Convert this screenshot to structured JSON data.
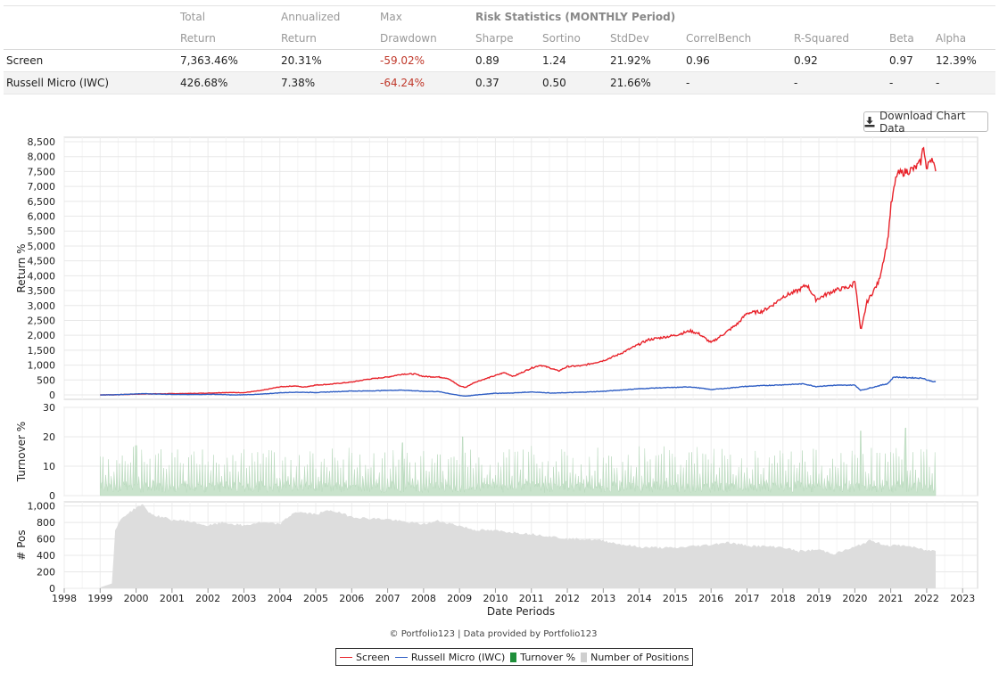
{
  "stats": {
    "header_top": [
      "",
      "Total",
      "Annualized",
      "Max",
      "Risk Statistics (MONTHLY Period)"
    ],
    "header_bottom": [
      "",
      "Return",
      "Return",
      "Drawdown",
      "Sharpe",
      "Sortino",
      "StdDev",
      "CorrelBench",
      "R-Squared",
      "Beta",
      "Alpha"
    ],
    "rows": [
      {
        "name": "Screen",
        "total_return": "7,363.46%",
        "annualized": "20.31%",
        "max_drawdown": "-59.02%",
        "sharpe": "0.89",
        "sortino": "1.24",
        "stddev": "21.92%",
        "correl": "0.96",
        "rsq": "0.92",
        "beta": "0.97",
        "alpha": "12.39%"
      },
      {
        "name": "Russell Micro (IWC)",
        "total_return": "426.68%",
        "annualized": "7.38%",
        "max_drawdown": "-64.24%",
        "sharpe": "0.37",
        "sortino": "0.50",
        "stddev": "21.66%",
        "correl": "-",
        "rsq": "-",
        "beta": "-",
        "alpha": "-"
      }
    ]
  },
  "download_button": {
    "label": "Download Chart Data",
    "icon": "download-icon"
  },
  "credit": "© Portfolio123 | Data provided by Portfolio123",
  "legend": [
    {
      "label": "Screen",
      "color": "#e8222a",
      "kind": "line"
    },
    {
      "label": "Russell Micro (IWC)",
      "color": "#2f5ec4",
      "kind": "line"
    },
    {
      "label": "Turnover %",
      "color": "#1f8f3a",
      "kind": "box"
    },
    {
      "label": "Number of Positions",
      "color": "#cfcfcf",
      "kind": "box"
    }
  ],
  "chart_data": {
    "type": "line",
    "xlabel": "Date Periods",
    "x_ticks": [
      "1998",
      "1999",
      "2000",
      "2001",
      "2002",
      "2003",
      "2004",
      "2005",
      "2006",
      "2007",
      "2008",
      "2009",
      "2010",
      "2011",
      "2012",
      "2013",
      "2014",
      "2015",
      "2016",
      "2017",
      "2018",
      "2019",
      "2020",
      "2021",
      "2022",
      "2023"
    ],
    "x_range": [
      "1998-01-01",
      "2023-06-01"
    ],
    "grid": true,
    "legend_position": "bottom-center",
    "panels": [
      {
        "ylabel": "Return %",
        "ylim": [
          -150,
          8650
        ],
        "y_ticks": [
          0,
          500,
          1000,
          1500,
          2000,
          2500,
          3000,
          3500,
          4000,
          4500,
          5000,
          5500,
          6000,
          6500,
          7000,
          7500,
          8000,
          8500
        ],
        "series": [
          {
            "name": "Screen",
            "color": "#e8222a",
            "points": [
              [
                "1999-01",
                0
              ],
              [
                "1999-07",
                5
              ],
              [
                "2000-01",
                25
              ],
              [
                "2000-06",
                35
              ],
              [
                "2001-01",
                40
              ],
              [
                "2001-09",
                50
              ],
              [
                "2002-01",
                60
              ],
              [
                "2002-07",
                80
              ],
              [
                "2003-01",
                75
              ],
              [
                "2003-07",
                150
              ],
              [
                "2004-01",
                270
              ],
              [
                "2004-06",
                300
              ],
              [
                "2004-09",
                260
              ],
              [
                "2005-01",
                330
              ],
              [
                "2005-06",
                360
              ],
              [
                "2006-01",
                430
              ],
              [
                "2006-06",
                520
              ],
              [
                "2007-01",
                600
              ],
              [
                "2007-06",
                700
              ],
              [
                "2007-10",
                700
              ],
              [
                "2008-01",
                620
              ],
              [
                "2008-06",
                600
              ],
              [
                "2008-09",
                560
              ],
              [
                "2009-01",
                300
              ],
              [
                "2009-03",
                250
              ],
              [
                "2009-06",
                420
              ],
              [
                "2010-01",
                650
              ],
              [
                "2010-04",
                750
              ],
              [
                "2010-07",
                620
              ],
              [
                "2011-01",
                900
              ],
              [
                "2011-04",
                1000
              ],
              [
                "2011-08",
                880
              ],
              [
                "2011-10",
                800
              ],
              [
                "2012-01",
                950
              ],
              [
                "2012-06",
                980
              ],
              [
                "2013-01",
                1150
              ],
              [
                "2013-06",
                1350
              ],
              [
                "2014-01",
                1700
              ],
              [
                "2014-04",
                1850
              ],
              [
                "2014-10",
                1950
              ],
              [
                "2015-01",
                2000
              ],
              [
                "2015-06",
                2150
              ],
              [
                "2015-09",
                2050
              ],
              [
                "2016-01",
                1750
              ],
              [
                "2016-06",
                2100
              ],
              [
                "2016-10",
                2400
              ],
              [
                "2017-01",
                2750
              ],
              [
                "2017-06",
                2800
              ],
              [
                "2017-10",
                3050
              ],
              [
                "2018-01",
                3300
              ],
              [
                "2018-06",
                3500
              ],
              [
                "2018-09",
                3700
              ],
              [
                "2018-12",
                3200
              ],
              [
                "2019-06",
                3500
              ],
              [
                "2019-12",
                3650
              ],
              [
                "2020-01",
                3900
              ],
              [
                "2020-03",
                2100
              ],
              [
                "2020-05",
                3100
              ],
              [
                "2020-09",
                3800
              ],
              [
                "2020-12",
                5200
              ],
              [
                "2021-01",
                6300
              ],
              [
                "2021-03",
                7400
              ],
              [
                "2021-06",
                7500
              ],
              [
                "2021-09",
                7600
              ],
              [
                "2021-11",
                7800
              ],
              [
                "2021-12",
                8400
              ],
              [
                "2022-01",
                7500
              ],
              [
                "2022-02",
                7900
              ],
              [
                "2022-03",
                8000
              ],
              [
                "2022-04",
                7400
              ]
            ]
          },
          {
            "name": "Russell Micro (IWC)",
            "color": "#2f5ec4",
            "points": [
              [
                "1999-01",
                0
              ],
              [
                "1999-07",
                5
              ],
              [
                "2000-03",
                40
              ],
              [
                "2000-12",
                20
              ],
              [
                "2001-06",
                10
              ],
              [
                "2002-03",
                20
              ],
              [
                "2002-10",
                -5
              ],
              [
                "2003-06",
                20
              ],
              [
                "2004-01",
                70
              ],
              [
                "2004-06",
                90
              ],
              [
                "2005-01",
                80
              ],
              [
                "2005-06",
                100
              ],
              [
                "2006-01",
                130
              ],
              [
                "2006-06",
                130
              ],
              [
                "2007-01",
                150
              ],
              [
                "2007-06",
                160
              ],
              [
                "2008-01",
                120
              ],
              [
                "2008-06",
                110
              ],
              [
                "2009-01",
                -20
              ],
              [
                "2009-03",
                -40
              ],
              [
                "2009-12",
                50
              ],
              [
                "2010-06",
                60
              ],
              [
                "2011-01",
                100
              ],
              [
                "2011-08",
                60
              ],
              [
                "2012-06",
                90
              ],
              [
                "2013-01",
                120
              ],
              [
                "2013-12",
                200
              ],
              [
                "2014-06",
                230
              ],
              [
                "2015-01",
                250
              ],
              [
                "2015-06",
                270
              ],
              [
                "2016-01",
                180
              ],
              [
                "2016-06",
                220
              ],
              [
                "2016-12",
                280
              ],
              [
                "2017-06",
                310
              ],
              [
                "2018-01",
                340
              ],
              [
                "2018-08",
                370
              ],
              [
                "2018-12",
                280
              ],
              [
                "2019-06",
                320
              ],
              [
                "2020-01",
                330
              ],
              [
                "2020-03",
                150
              ],
              [
                "2020-06",
                230
              ],
              [
                "2020-12",
                380
              ],
              [
                "2021-02",
                600
              ],
              [
                "2021-06",
                580
              ],
              [
                "2021-12",
                560
              ],
              [
                "2022-01",
                500
              ],
              [
                "2022-04",
                430
              ]
            ]
          }
        ]
      },
      {
        "ylabel": "Turnover %",
        "ylim": [
          0,
          30
        ],
        "y_ticks": [
          0,
          10,
          20,
          30
        ],
        "series": [
          {
            "name": "Turnover %",
            "color": "#c9e3cc",
            "type": "area",
            "typical_range": [
              2,
              17
            ],
            "peaks": [
              [
                "2000-01",
                17
              ],
              [
                "2007-06",
                18
              ],
              [
                "2009-02",
                20
              ],
              [
                "2020-03",
                22
              ],
              [
                "2021-06",
                23
              ]
            ]
          }
        ]
      },
      {
        "ylabel": "# Pos",
        "ylim": [
          0,
          1050
        ],
        "y_ticks": [
          0,
          200,
          400,
          600,
          800,
          1000
        ],
        "series": [
          {
            "name": "Number of Positions",
            "color": "#dddddd",
            "type": "area",
            "points": [
              [
                "1999-01",
                10
              ],
              [
                "1999-05",
                60
              ],
              [
                "1999-06",
                700
              ],
              [
                "1999-08",
                850
              ],
              [
                "2000-01",
                980
              ],
              [
                "2000-03",
                1020
              ],
              [
                "2000-06",
                900
              ],
              [
                "2001-01",
                830
              ],
              [
                "2001-06",
                820
              ],
              [
                "2002-01",
                760
              ],
              [
                "2002-06",
                800
              ],
              [
                "2003-01",
                760
              ],
              [
                "2003-06",
                800
              ],
              [
                "2004-01",
                780
              ],
              [
                "2004-06",
                930
              ],
              [
                "2005-01",
                900
              ],
              [
                "2005-06",
                950
              ],
              [
                "2006-01",
                870
              ],
              [
                "2006-06",
                850
              ],
              [
                "2007-01",
                840
              ],
              [
                "2007-06",
                810
              ],
              [
                "2008-01",
                780
              ],
              [
                "2008-06",
                820
              ],
              [
                "2009-01",
                760
              ],
              [
                "2009-06",
                710
              ],
              [
                "2010-01",
                700
              ],
              [
                "2011-01",
                660
              ],
              [
                "2011-06",
                640
              ],
              [
                "2012-01",
                600
              ],
              [
                "2012-06",
                600
              ],
              [
                "2013-01",
                580
              ],
              [
                "2013-06",
                540
              ],
              [
                "2014-01",
                500
              ],
              [
                "2015-01",
                490
              ],
              [
                "2015-06",
                510
              ],
              [
                "2016-01",
                530
              ],
              [
                "2016-06",
                560
              ],
              [
                "2017-01",
                520
              ],
              [
                "2018-01",
                500
              ],
              [
                "2018-06",
                450
              ],
              [
                "2019-01",
                470
              ],
              [
                "2019-06",
                420
              ],
              [
                "2020-01",
                500
              ],
              [
                "2020-06",
                580
              ],
              [
                "2020-12",
                520
              ],
              [
                "2021-06",
                520
              ],
              [
                "2022-01",
                460
              ],
              [
                "2022-04",
                460
              ]
            ]
          }
        ]
      }
    ]
  }
}
